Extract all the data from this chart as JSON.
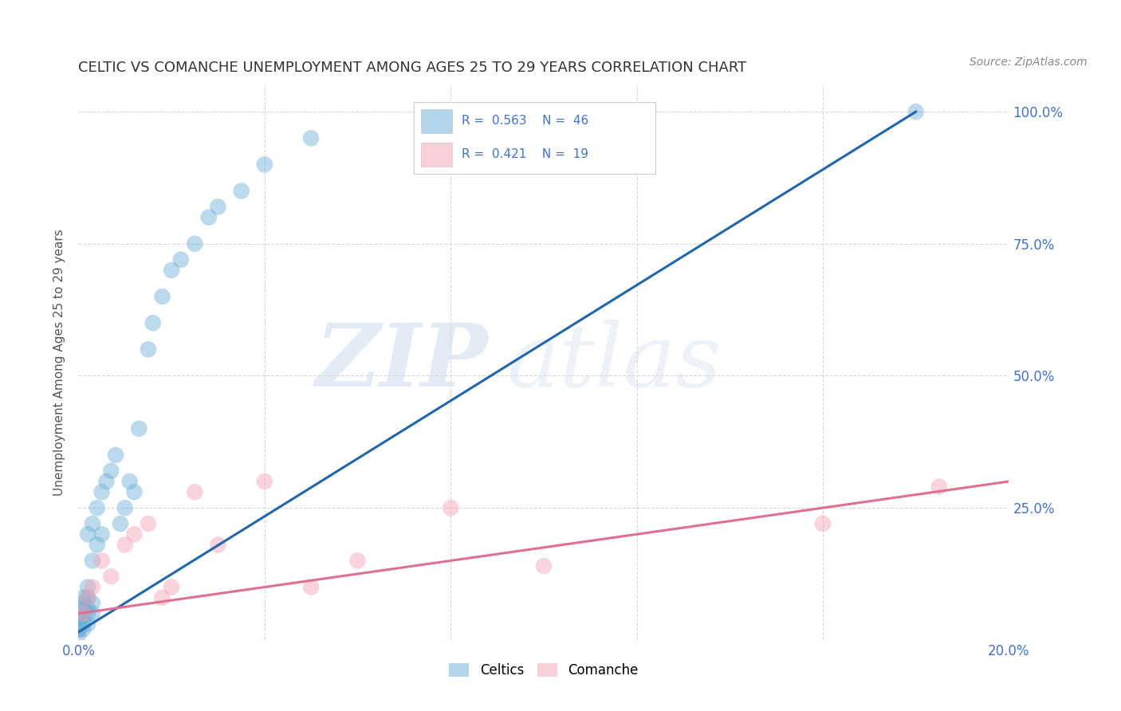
{
  "title": "CELTIC VS COMANCHE UNEMPLOYMENT AMONG AGES 25 TO 29 YEARS CORRELATION CHART",
  "source": "Source: ZipAtlas.com",
  "ylabel": "Unemployment Among Ages 25 to 29 years",
  "xlim": [
    0.0,
    0.2
  ],
  "ylim": [
    0.0,
    1.05
  ],
  "celtics_R": 0.563,
  "celtics_N": 46,
  "comanche_R": 0.421,
  "comanche_N": 19,
  "celtics_color": "#6baed6",
  "comanche_color": "#f4a0b5",
  "celtics_line_color": "#2166ac",
  "comanche_line_color": "#e07090",
  "celtics_x": [
    0.0,
    0.0,
    0.0,
    0.0,
    0.0,
    0.001,
    0.001,
    0.001,
    0.001,
    0.001,
    0.001,
    0.001,
    0.002,
    0.002,
    0.002,
    0.002,
    0.002,
    0.002,
    0.003,
    0.003,
    0.003,
    0.003,
    0.004,
    0.004,
    0.005,
    0.005,
    0.006,
    0.007,
    0.008,
    0.009,
    0.01,
    0.011,
    0.012,
    0.013,
    0.015,
    0.016,
    0.018,
    0.02,
    0.022,
    0.025,
    0.028,
    0.03,
    0.035,
    0.04,
    0.05,
    0.18
  ],
  "celtics_y": [
    0.01,
    0.02,
    0.02,
    0.03,
    0.05,
    0.02,
    0.03,
    0.04,
    0.05,
    0.06,
    0.07,
    0.08,
    0.03,
    0.05,
    0.06,
    0.08,
    0.1,
    0.2,
    0.05,
    0.07,
    0.15,
    0.22,
    0.18,
    0.25,
    0.2,
    0.28,
    0.3,
    0.32,
    0.35,
    0.22,
    0.25,
    0.3,
    0.28,
    0.4,
    0.55,
    0.6,
    0.65,
    0.7,
    0.72,
    0.75,
    0.8,
    0.82,
    0.85,
    0.9,
    0.95,
    1.0
  ],
  "comanche_x": [
    0.001,
    0.002,
    0.003,
    0.005,
    0.007,
    0.01,
    0.012,
    0.015,
    0.018,
    0.02,
    0.025,
    0.03,
    0.04,
    0.05,
    0.06,
    0.08,
    0.1,
    0.16,
    0.185
  ],
  "comanche_y": [
    0.05,
    0.08,
    0.1,
    0.15,
    0.12,
    0.18,
    0.2,
    0.22,
    0.08,
    0.1,
    0.28,
    0.18,
    0.3,
    0.1,
    0.15,
    0.25,
    0.14,
    0.22,
    0.29
  ],
  "celtics_line_x0": 0.0,
  "celtics_line_y0": 0.015,
  "celtics_line_x1": 0.18,
  "celtics_line_y1": 1.0,
  "comanche_line_x0": 0.0,
  "comanche_line_y0": 0.05,
  "comanche_line_x1": 0.2,
  "comanche_line_y1": 0.3,
  "watermark_color": "#dce8f5",
  "background_color": "#ffffff",
  "grid_color": "#d8d8d8",
  "title_color": "#333333",
  "tick_color": "#4472c4"
}
